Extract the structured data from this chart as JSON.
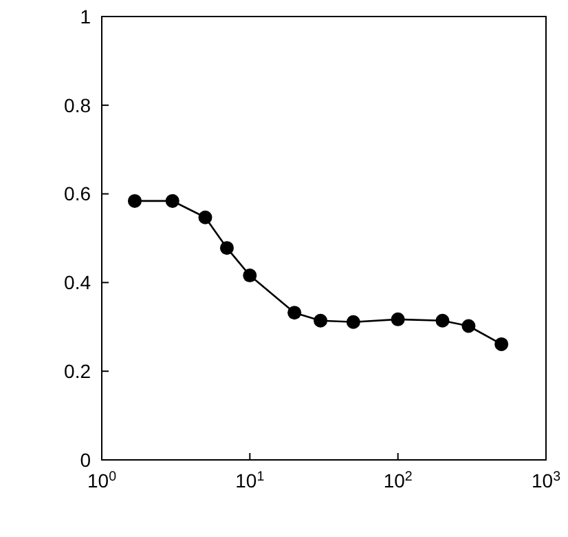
{
  "chart_data": {
    "type": "line",
    "x": [
      1.67,
      3,
      5,
      7,
      10,
      20,
      30,
      50,
      100,
      200,
      300,
      500
    ],
    "series": [
      {
        "color": "#000000",
        "values": [
          0.584,
          0.584,
          0.547,
          0.478,
          0.416,
          0.332,
          0.314,
          0.311,
          0.317,
          0.314,
          0.302,
          0.261
        ]
      }
    ],
    "log": "x",
    "xlim": [
      1,
      1000
    ],
    "xticks": [
      {
        "value": 1,
        "label": "10$^{0}$"
      },
      {
        "value": 10,
        "label": "10$^{1}$"
      },
      {
        "value": 100,
        "label": "10$^{2}$"
      },
      {
        "value": 1000,
        "label": "10$^{3}$"
      }
    ],
    "ylim": [
      0,
      1
    ],
    "yticks": [
      0,
      0.2,
      0.4,
      0.6,
      0.8,
      1
    ],
    "marker": "circle",
    "line_style": "solid",
    "grid": false
  }
}
